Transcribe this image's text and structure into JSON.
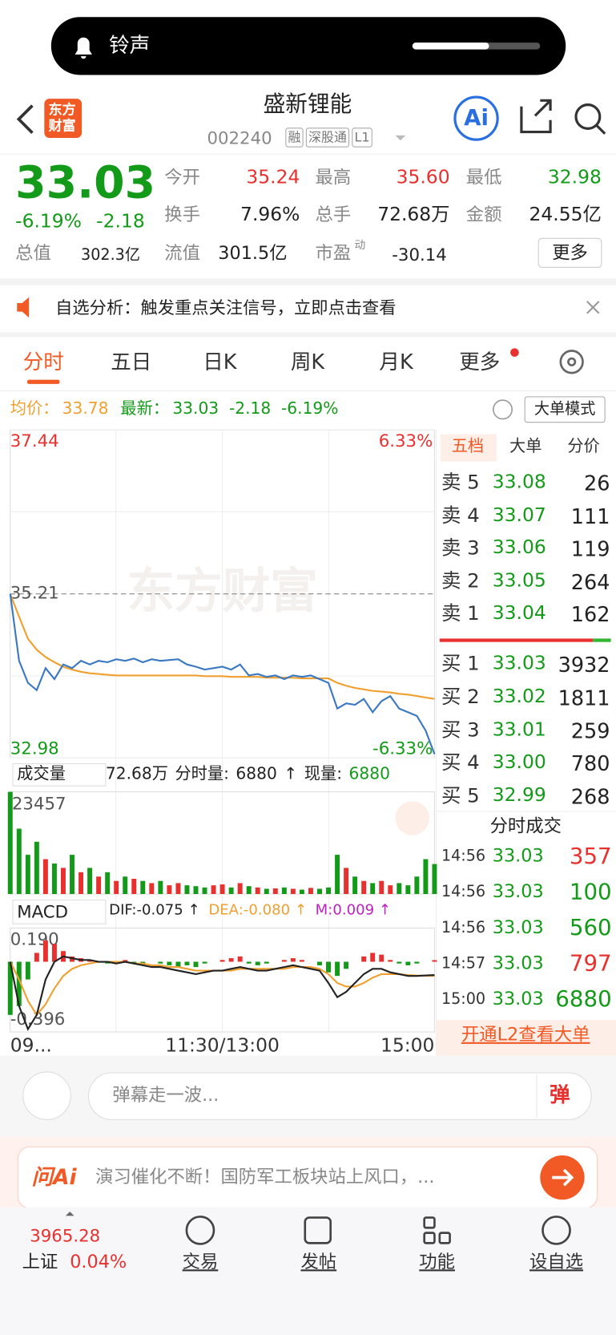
{
  "notification": {
    "label": "铃声"
  },
  "header": {
    "logo": [
      "东方",
      "财富"
    ],
    "name": "盛新锂能",
    "code": "002240",
    "tags": [
      "融",
      "深股通",
      "L1"
    ],
    "ai": "Ai"
  },
  "quote": {
    "price": "33.03",
    "change_pct": "-6.19%",
    "change": "-2.18",
    "fields": [
      {
        "label": "今开",
        "value": "35.24",
        "tone": "red"
      },
      {
        "label": "最高",
        "value": "35.60",
        "tone": "red"
      },
      {
        "label": "最低",
        "value": "32.98",
        "tone": "green"
      },
      {
        "label": "换手",
        "value": "7.96%",
        "tone": "dark"
      },
      {
        "label": "总手",
        "value": "72.68万",
        "tone": "dark"
      },
      {
        "label": "金额",
        "value": "24.55亿",
        "tone": "dark"
      }
    ],
    "total_label": "总值",
    "total_value": "302.3亿",
    "float_label": "流值",
    "float_value": "301.5亿",
    "pe_label": "市盈",
    "pe_sup": "动",
    "pe_value": "-30.14",
    "more": "更多"
  },
  "banner": {
    "text": "自选分析：触发重点关注信号，立即点击查看"
  },
  "tabs": [
    "分时",
    "五日",
    "日K",
    "周K",
    "月K",
    "更多"
  ],
  "info": {
    "avg_label": "均价：",
    "avg_value": "33.78",
    "last_label": "最新：",
    "last_value": "33.03",
    "change": "-2.18",
    "change_pct": "-6.19%",
    "mode": "大单模式"
  },
  "chart_data": {
    "type": "line",
    "watermark": "东方财富",
    "x": [
      0,
      5,
      10,
      15,
      20,
      25,
      30,
      35,
      40,
      45,
      50,
      55,
      60,
      65,
      70,
      75,
      80,
      85,
      90,
      95,
      100,
      105,
      110,
      115,
      120,
      125,
      130,
      135,
      140,
      145,
      150,
      155,
      160,
      165,
      170,
      175,
      180,
      185,
      190,
      195,
      200,
      205,
      210,
      215,
      220,
      225,
      230,
      235,
      240
    ],
    "xlim": [
      0,
      240
    ],
    "xticks": [
      {
        "value": 0,
        "label": "09..."
      },
      {
        "value": 120,
        "label": "11:30/13:00"
      },
      {
        "value": 240,
        "label": "15:00"
      }
    ],
    "ylim": [
      32.98,
      37.44
    ],
    "yticks": [
      37.44,
      35.21,
      32.98
    ],
    "y2lim": [
      -6.33,
      6.33
    ],
    "y2ticks": [
      {
        "value": 6.33,
        "label": "6.33%"
      },
      {
        "value": -6.33,
        "label": "-6.33%"
      }
    ],
    "price": {
      "color": "#3a78c2",
      "values": [
        35.21,
        34.3,
        34.0,
        33.9,
        34.2,
        34.05,
        34.25,
        34.2,
        34.3,
        34.25,
        34.3,
        34.28,
        34.32,
        34.3,
        34.33,
        34.28,
        34.32,
        34.3,
        34.31,
        34.32,
        34.25,
        34.22,
        34.18,
        34.2,
        34.22,
        34.18,
        34.25,
        34.1,
        34.12,
        34.08,
        34.1,
        34.05,
        34.1,
        34.08,
        34.1,
        34.05,
        34.0,
        33.65,
        33.72,
        33.7,
        33.78,
        33.6,
        33.75,
        33.82,
        33.65,
        33.6,
        33.55,
        33.35,
        33.03
      ]
    },
    "avg": {
      "color": "#f0a030",
      "values": [
        35.21,
        34.9,
        34.6,
        34.45,
        34.35,
        34.28,
        34.22,
        34.18,
        34.15,
        34.13,
        34.12,
        34.11,
        34.1,
        34.1,
        34.1,
        34.1,
        34.1,
        34.1,
        34.1,
        34.1,
        34.1,
        34.1,
        34.09,
        34.09,
        34.09,
        34.08,
        34.08,
        34.08,
        34.08,
        34.07,
        34.07,
        34.07,
        34.07,
        34.06,
        34.06,
        34.06,
        34.06,
        34.0,
        33.96,
        33.93,
        33.91,
        33.89,
        33.88,
        33.87,
        33.85,
        33.84,
        33.82,
        33.8,
        33.78
      ]
    },
    "volume": {
      "label": "成交量",
      "total": "72.68万",
      "minute_label": "分时量:",
      "minute_value": "6880",
      "arrow": "↑",
      "current_label": "现量:",
      "current_value": "6880",
      "ylim": [
        0,
        23457
      ],
      "yticks": [
        23457
      ],
      "up_color": "#e8312f",
      "down_color": "#139a18",
      "values": [
        23457,
        15000,
        9000,
        12000,
        8000,
        7000,
        6000,
        9000,
        5000,
        6000,
        4000,
        5000,
        3000,
        4000,
        3500,
        3000,
        2500,
        3000,
        2000,
        2500,
        2000,
        1800,
        1500,
        2000,
        2200,
        1500,
        2500,
        1800,
        1500,
        1200,
        1300,
        1500,
        1200,
        1000,
        1400,
        1200,
        1500,
        9000,
        6000,
        4000,
        3000,
        2500,
        3000,
        2000,
        2500,
        2000,
        4000,
        8000,
        6880
      ]
    },
    "macd": {
      "label": "MACD",
      "dif_text": "DIF:-0.075 ↑",
      "dea_text": "DEA:-0.080 ↑",
      "m_text": "M:0.009 ↑",
      "ylim": [
        -0.396,
        0.19
      ],
      "yticks": [
        {
          "value": 0.19,
          "label": "0.190"
        },
        -0.396
      ],
      "dif_color": "#222",
      "dea_color": "#f0a030",
      "histogram": [
        -0.3,
        -0.25,
        -0.1,
        0.05,
        0.12,
        0.1,
        0.06,
        0.03,
        0.02,
        0.01,
        0.0,
        -0.01,
        0.0,
        0.01,
        -0.01,
        -0.02,
        0.0,
        -0.01,
        -0.02,
        -0.03,
        -0.02,
        -0.03,
        -0.01,
        0.0,
        0.01,
        0.02,
        0.03,
        -0.01,
        -0.02,
        -0.01,
        0.0,
        0.01,
        0.02,
        0.01,
        0.0,
        -0.02,
        -0.06,
        -0.08,
        -0.04,
        0.0,
        0.03,
        0.05,
        0.04,
        0.01,
        -0.01,
        -0.02,
        -0.01,
        0.0,
        0.009
      ],
      "dif": [
        0.0,
        -0.25,
        -0.38,
        -0.3,
        -0.1,
        0.0,
        0.03,
        0.02,
        0.01,
        0.01,
        0.0,
        0.0,
        -0.01,
        0.0,
        -0.01,
        -0.02,
        -0.03,
        -0.03,
        -0.04,
        -0.05,
        -0.06,
        -0.07,
        -0.06,
        -0.05,
        -0.05,
        -0.04,
        -0.03,
        -0.04,
        -0.05,
        -0.05,
        -0.04,
        -0.03,
        -0.02,
        -0.03,
        -0.04,
        -0.05,
        -0.12,
        -0.2,
        -0.17,
        -0.12,
        -0.07,
        -0.04,
        -0.04,
        -0.06,
        -0.07,
        -0.08,
        -0.08,
        -0.077,
        -0.075
      ],
      "dea": [
        0.0,
        -0.1,
        -0.22,
        -0.3,
        -0.24,
        -0.15,
        -0.08,
        -0.04,
        -0.02,
        -0.01,
        0.0,
        0.0,
        0.0,
        0.0,
        -0.01,
        -0.01,
        -0.02,
        -0.02,
        -0.03,
        -0.03,
        -0.04,
        -0.05,
        -0.05,
        -0.05,
        -0.05,
        -0.05,
        -0.04,
        -0.04,
        -0.04,
        -0.04,
        -0.04,
        -0.04,
        -0.03,
        -0.03,
        -0.03,
        -0.04,
        -0.07,
        -0.12,
        -0.14,
        -0.14,
        -0.12,
        -0.09,
        -0.07,
        -0.07,
        -0.07,
        -0.075,
        -0.078,
        -0.079,
        -0.08
      ]
    }
  },
  "order_book": {
    "tabs": [
      "五档",
      "大单",
      "分价"
    ],
    "sells": [
      {
        "label": "卖 5",
        "price": "33.08",
        "volume": "26"
      },
      {
        "label": "卖 4",
        "price": "33.07",
        "volume": "111"
      },
      {
        "label": "卖 3",
        "price": "33.06",
        "volume": "119"
      },
      {
        "label": "卖 2",
        "price": "33.05",
        "volume": "264"
      },
      {
        "label": "卖 1",
        "price": "33.04",
        "volume": "162"
      }
    ],
    "buys": [
      {
        "label": "买 1",
        "price": "33.03",
        "volume": "3932"
      },
      {
        "label": "买 2",
        "price": "33.02",
        "volume": "1811"
      },
      {
        "label": "买 3",
        "price": "33.01",
        "volume": "259"
      },
      {
        "label": "买 4",
        "price": "33.00",
        "volume": "780"
      },
      {
        "label": "买 5",
        "price": "32.99",
        "volume": "268"
      }
    ]
  },
  "trades": {
    "title": "分时成交",
    "rows": [
      {
        "time": "14:56",
        "price": "33.03",
        "volume": "357",
        "tone": "red"
      },
      {
        "time": "14:56",
        "price": "33.03",
        "volume": "100",
        "tone": "green"
      },
      {
        "time": "14:56",
        "price": "33.03",
        "volume": "560",
        "tone": "green"
      },
      {
        "time": "14:57",
        "price": "33.03",
        "volume": "797",
        "tone": "red"
      },
      {
        "time": "15:00",
        "price": "33.03",
        "volume": "6880",
        "tone": "green"
      }
    ],
    "link": "开通L2查看大单"
  },
  "comment": {
    "placeholder": "弹幕走一波...",
    "button": "弹"
  },
  "ai_bar": {
    "label": "问Ai",
    "text": "演习催化不断！国防军工板块站上风口，..."
  },
  "nav": {
    "index_value": "3965.28",
    "index_name": "上证",
    "index_change": "0.04%",
    "items": [
      "交易",
      "发帖",
      "功能",
      "设自选"
    ]
  }
}
